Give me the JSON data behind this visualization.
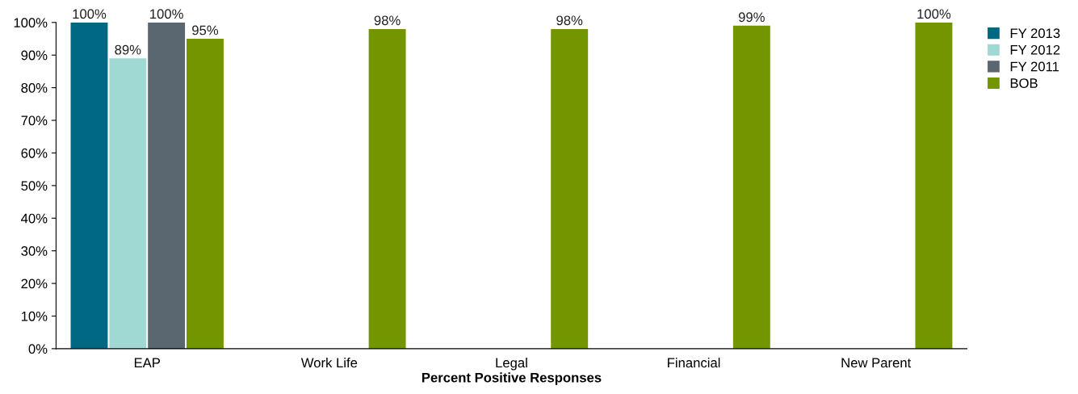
{
  "chart_data": {
    "type": "bar",
    "xlabel": "Percent Positive Responses",
    "categories": [
      "EAP",
      "Work Life",
      "Legal",
      "Financial",
      "New Parent"
    ],
    "series": [
      {
        "name": "FY 2013",
        "color": "#006882",
        "values": [
          100,
          null,
          null,
          null,
          null
        ],
        "value_labels": [
          "100%",
          null,
          null,
          null,
          null
        ]
      },
      {
        "name": "FY 2012",
        "color": "#a0d8d3",
        "values": [
          89,
          null,
          null,
          null,
          null
        ],
        "value_labels": [
          "89%",
          null,
          null,
          null,
          null
        ]
      },
      {
        "name": "FY 2011",
        "color": "#5a6670",
        "values": [
          100,
          null,
          null,
          null,
          null
        ],
        "value_labels": [
          "100%",
          null,
          null,
          null,
          null
        ]
      },
      {
        "name": "BOB",
        "color": "#739600",
        "values": [
          95,
          98,
          98,
          99,
          100
        ],
        "value_labels": [
          "95%",
          "98%",
          "98%",
          "99%",
          "100%"
        ]
      }
    ],
    "ylim": [
      0,
      100
    ],
    "yticks": [
      {
        "value": 0,
        "label": "0%"
      },
      {
        "value": 10,
        "label": "10%"
      },
      {
        "value": 20,
        "label": "20%"
      },
      {
        "value": 30,
        "label": "30%"
      },
      {
        "value": 40,
        "label": "40%"
      },
      {
        "value": 50,
        "label": "50%"
      },
      {
        "value": 60,
        "label": "60%"
      },
      {
        "value": 70,
        "label": "70%"
      },
      {
        "value": 80,
        "label": "80%"
      },
      {
        "value": 90,
        "label": "90%"
      },
      {
        "value": 100,
        "label": "100%"
      }
    ],
    "grid": false,
    "legend": "top right"
  }
}
